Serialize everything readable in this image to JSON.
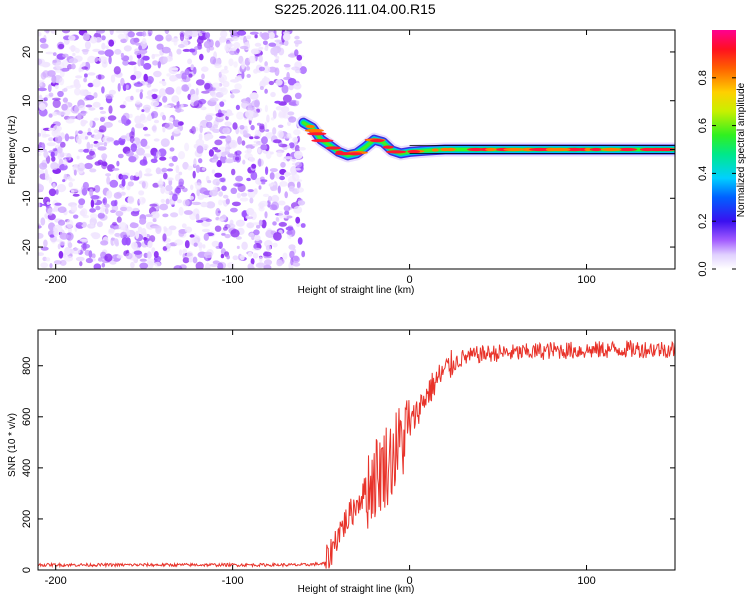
{
  "title": "S225.2026.111.04.00.R15",
  "chart_data": [
    {
      "type": "heatmap",
      "name": "spectrogram",
      "xlabel": "Height of straight line (km)",
      "ylabel": "Frequency (Hz)",
      "xlim": [
        -210,
        150
      ],
      "ylim": [
        -24.5,
        24.5
      ],
      "xticks": [
        -200,
        -100,
        0,
        100
      ],
      "yticks": [
        -20,
        -10,
        0,
        10,
        20
      ],
      "noise_region_x": [
        -210,
        -60
      ],
      "signal_track": {
        "x": [
          -60,
          -55,
          -50,
          -45,
          -40,
          -35,
          -30,
          -25,
          -20,
          -15,
          -10,
          -5,
          0,
          10,
          20,
          40,
          60,
          80,
          100,
          120,
          150
        ],
        "frequency": [
          5.5,
          4.5,
          2.0,
          0.8,
          -0.5,
          -1.2,
          -0.8,
          0.5,
          2.0,
          1.5,
          -0.2,
          -0.8,
          -0.5,
          -0.2,
          0.0,
          0.0,
          0.0,
          0.0,
          0.0,
          0.0,
          0.0
        ]
      },
      "colorbar": {
        "label": "Normalized spectral amplitude",
        "range": [
          0.0,
          1.0
        ],
        "ticks": [
          "0.0",
          "0.2",
          "0.4",
          "0.6",
          "0.8"
        ]
      }
    },
    {
      "type": "line",
      "name": "snr",
      "xlabel": "Height of straight line (km)",
      "ylabel": "SNR (10 * v/v)",
      "xlim": [
        -210,
        150
      ],
      "ylim": [
        0,
        940
      ],
      "xticks": [
        -200,
        -100,
        0,
        100
      ],
      "yticks": [
        0,
        200,
        400,
        600,
        800
      ],
      "color": "#e8332a",
      "series": [
        {
          "name": "SNR",
          "x": [
            -210,
            -150,
            -100,
            -60,
            -48,
            -45,
            -40,
            -35,
            -30,
            -25,
            -20,
            -15,
            -10,
            -5,
            0,
            5,
            10,
            15,
            20,
            25,
            30,
            40,
            50,
            60,
            80,
            100,
            120,
            150
          ],
          "y": [
            20,
            20,
            20,
            20,
            25,
            60,
            150,
            200,
            260,
            310,
            360,
            400,
            440,
            500,
            560,
            630,
            690,
            740,
            780,
            810,
            830,
            845,
            850,
            850,
            860,
            860,
            865,
            865
          ]
        }
      ]
    }
  ]
}
